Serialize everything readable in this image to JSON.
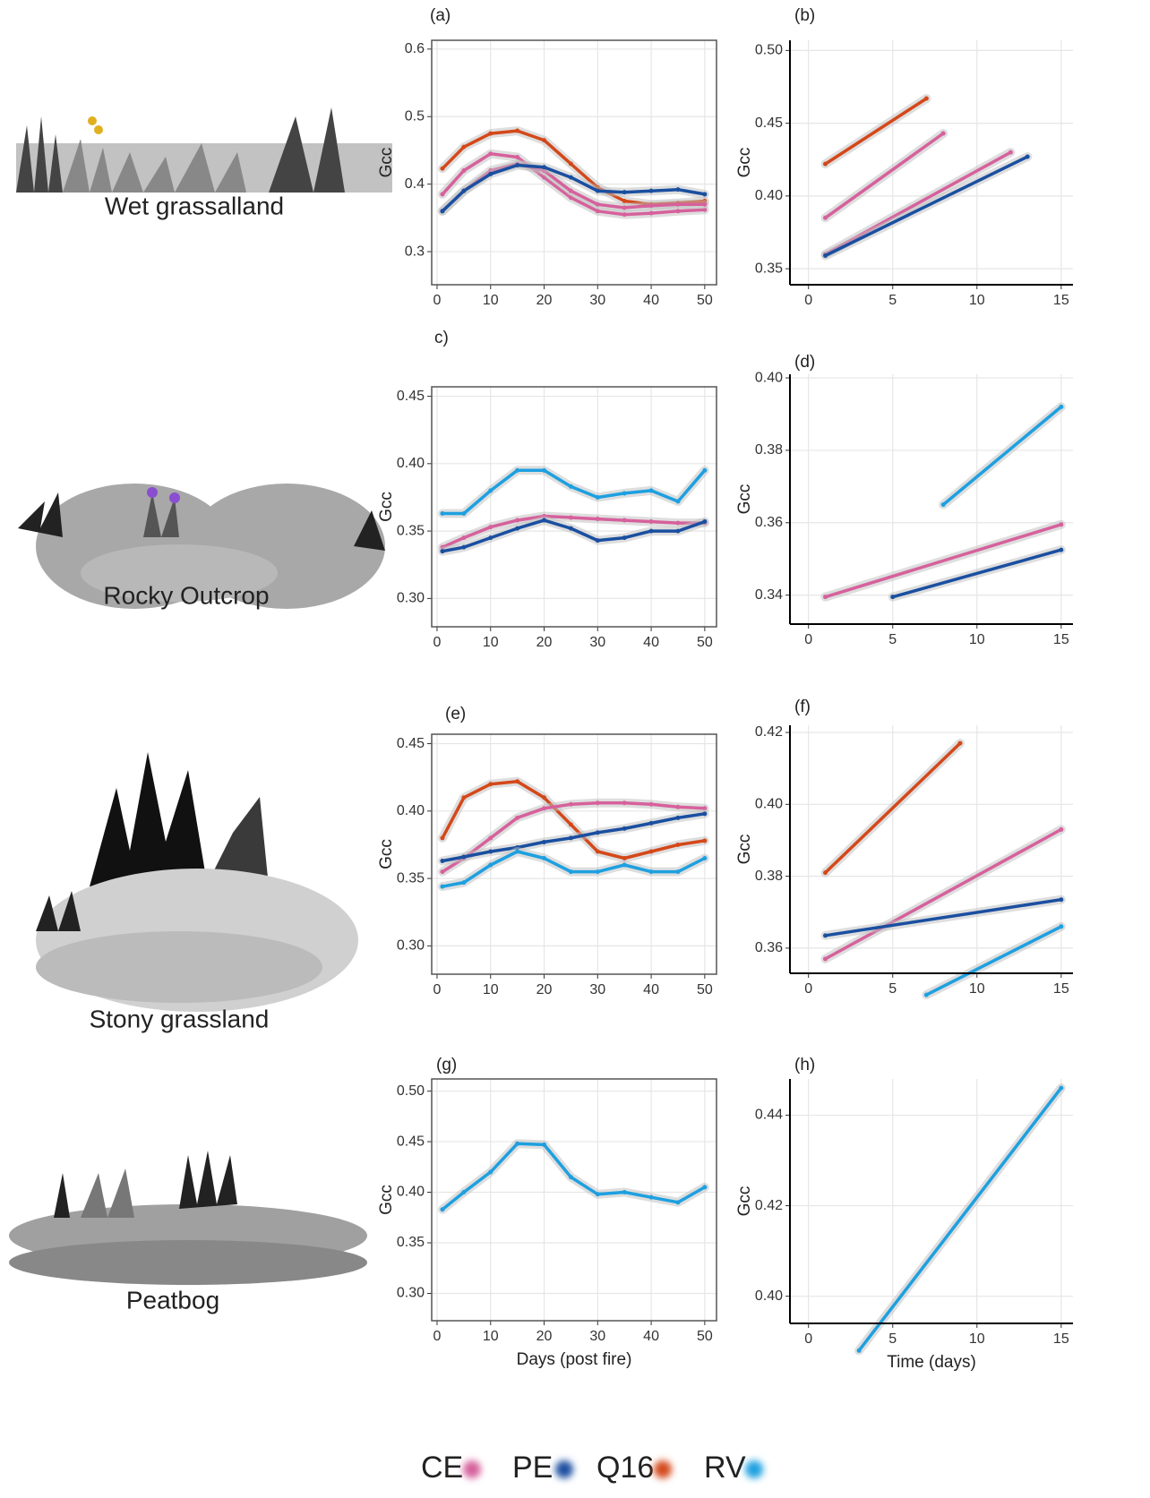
{
  "chart_data": [
    {
      "type": "line",
      "title": "(a)",
      "ylabel": "Gcc",
      "xlim": [
        -1,
        52.2
      ],
      "ylim": [
        0.251,
        0.613
      ],
      "xticks": [
        0,
        10,
        20,
        30,
        40,
        50
      ],
      "yticks": [
        0.3,
        0.4,
        0.5,
        0.6
      ],
      "grid": true,
      "x": [
        1,
        5,
        10,
        15,
        20,
        25,
        30,
        35,
        40,
        45,
        50
      ],
      "series": [
        {
          "name": "Q16",
          "color": "#d4481a",
          "values": [
            0.423,
            0.455,
            0.475,
            0.479,
            0.465,
            0.43,
            0.395,
            0.375,
            0.37,
            0.372,
            0.375
          ]
        },
        {
          "name": "CE",
          "color": "#d6619c",
          "values": [
            0.385,
            0.42,
            0.445,
            0.44,
            0.41,
            0.38,
            0.36,
            0.355,
            0.357,
            0.36,
            0.362
          ]
        },
        {
          "name": "CE",
          "color": "#d6619c",
          "values": [
            0.36,
            0.39,
            0.42,
            0.43,
            0.42,
            0.39,
            0.37,
            0.365,
            0.368,
            0.37,
            0.37
          ]
        },
        {
          "name": "PE",
          "color": "#1a4fa0",
          "values": [
            0.36,
            0.39,
            0.415,
            0.428,
            0.425,
            0.41,
            0.39,
            0.388,
            0.39,
            0.392,
            0.385
          ]
        }
      ]
    },
    {
      "type": "line",
      "title": "(b)",
      "ylabel": "Gcc",
      "xlim": [
        -1.1,
        15.7
      ],
      "ylim": [
        0.339,
        0.507
      ],
      "xticks": [
        0,
        5,
        10,
        15
      ],
      "yticks": [
        0.35,
        {
          "value": 0.4,
          "label": "0.40"
        },
        0.45,
        {
          "value": 0.5,
          "label": "0.50"
        }
      ],
      "grid": true,
      "series": [
        {
          "name": "Q16",
          "color": "#d4481a",
          "x": [
            1,
            7
          ],
          "values": [
            0.422,
            0.467
          ]
        },
        {
          "name": "CE",
          "color": "#d6619c",
          "x": [
            1,
            8
          ],
          "values": [
            0.385,
            0.443
          ]
        },
        {
          "name": "CE",
          "color": "#d6619c",
          "x": [
            1,
            12
          ],
          "values": [
            0.36,
            0.43
          ]
        },
        {
          "name": "PE",
          "color": "#1a4fa0",
          "x": [
            1,
            13
          ],
          "values": [
            0.359,
            0.427
          ]
        }
      ]
    },
    {
      "type": "line",
      "title": "c)",
      "ylabel": "Gcc",
      "xlim": [
        -1,
        52.2
      ],
      "ylim": [
        0.279,
        0.457
      ],
      "xticks": [
        0,
        10,
        20,
        30,
        40,
        50
      ],
      "yticks": [
        {
          "value": 0.3,
          "label": "0.30"
        },
        0.35,
        {
          "value": 0.4,
          "label": "0.40"
        },
        0.45
      ],
      "grid": true,
      "x": [
        1,
        5,
        10,
        15,
        20,
        25,
        30,
        35,
        40,
        45,
        50
      ],
      "series": [
        {
          "name": "RV",
          "color": "#1ea0e0",
          "values": [
            0.363,
            0.363,
            0.38,
            0.395,
            0.395,
            0.383,
            0.375,
            0.378,
            0.38,
            0.372,
            0.395
          ]
        },
        {
          "name": "CE",
          "color": "#d6619c",
          "values": [
            0.338,
            0.345,
            0.353,
            0.358,
            0.361,
            0.36,
            0.359,
            0.358,
            0.357,
            0.356,
            0.356
          ]
        },
        {
          "name": "PE",
          "color": "#1a4fa0",
          "values": [
            0.335,
            0.338,
            0.345,
            0.352,
            0.358,
            0.352,
            0.343,
            0.345,
            0.35,
            0.35,
            0.357
          ]
        }
      ]
    },
    {
      "type": "line",
      "title": "(d)",
      "ylabel": "Gcc",
      "xlim": [
        -1.1,
        15.7
      ],
      "ylim": [
        0.332,
        0.401
      ],
      "xticks": [
        0,
        5,
        10,
        15
      ],
      "yticks": [
        0.34,
        0.36,
        0.38,
        {
          "value": 0.4,
          "label": "0.40"
        }
      ],
      "grid": true,
      "series": [
        {
          "name": "RV",
          "color": "#1ea0e0",
          "x": [
            8,
            15
          ],
          "values": [
            0.365,
            0.392
          ]
        },
        {
          "name": "CE",
          "color": "#d6619c",
          "x": [
            1,
            15
          ],
          "values": [
            0.3395,
            0.3595
          ]
        },
        {
          "name": "PE",
          "color": "#1a4fa0",
          "x": [
            5,
            15
          ],
          "values": [
            0.3395,
            0.3525
          ]
        }
      ]
    },
    {
      "type": "line",
      "title": "(e)",
      "ylabel": "Gcc",
      "xlim": [
        -1,
        52.2
      ],
      "ylim": [
        0.279,
        0.457
      ],
      "xticks": [
        0,
        10,
        20,
        30,
        40,
        50
      ],
      "yticks": [
        {
          "value": 0.3,
          "label": "0.30"
        },
        0.35,
        {
          "value": 0.4,
          "label": "0.40"
        },
        0.45
      ],
      "grid": true,
      "x": [
        1,
        5,
        10,
        15,
        20,
        25,
        30,
        35,
        40,
        45,
        50
      ],
      "series": [
        {
          "name": "Q16",
          "color": "#d4481a",
          "values": [
            0.38,
            0.41,
            0.42,
            0.422,
            0.41,
            0.39,
            0.37,
            0.365,
            0.37,
            0.375,
            0.378
          ]
        },
        {
          "name": "CE",
          "color": "#d6619c",
          "values": [
            0.355,
            0.365,
            0.38,
            0.395,
            0.402,
            0.405,
            0.406,
            0.406,
            0.405,
            0.403,
            0.402
          ]
        },
        {
          "name": "PE",
          "color": "#1a4fa0",
          "values": [
            0.363,
            0.366,
            0.37,
            0.373,
            0.377,
            0.38,
            0.384,
            0.387,
            0.391,
            0.395,
            0.398
          ]
        },
        {
          "name": "RV",
          "color": "#1ea0e0",
          "values": [
            0.344,
            0.347,
            0.36,
            0.37,
            0.365,
            0.355,
            0.355,
            0.36,
            0.355,
            0.355,
            0.365
          ]
        }
      ]
    },
    {
      "type": "line",
      "title": "(f)",
      "ylabel": "Gcc",
      "xlim": [
        -1.1,
        15.7
      ],
      "ylim": [
        0.353,
        0.422
      ],
      "xticks": [
        0,
        5,
        10,
        15
      ],
      "yticks": [
        0.36,
        0.38,
        {
          "value": 0.4,
          "label": "0.40"
        },
        0.42
      ],
      "grid": true,
      "series": [
        {
          "name": "Q16",
          "color": "#d4481a",
          "x": [
            1,
            9
          ],
          "values": [
            0.381,
            0.417
          ]
        },
        {
          "name": "CE",
          "color": "#d6619c",
          "x": [
            1,
            15
          ],
          "values": [
            0.357,
            0.393
          ]
        },
        {
          "name": "PE",
          "color": "#1a4fa0",
          "x": [
            1,
            15
          ],
          "values": [
            0.3635,
            0.3735
          ]
        },
        {
          "name": "RV",
          "color": "#1ea0e0",
          "x": [
            7,
            15
          ],
          "values": [
            0.347,
            0.366
          ]
        }
      ]
    },
    {
      "type": "line",
      "title": "(g)",
      "ylabel": "Gcc",
      "xlabel": "Days (post fire)",
      "xlim": [
        -1,
        52.2
      ],
      "ylim": [
        0.273,
        0.512
      ],
      "xticks": [
        0,
        10,
        20,
        30,
        40,
        50
      ],
      "yticks": [
        {
          "value": 0.3,
          "label": "0.30"
        },
        0.35,
        {
          "value": 0.4,
          "label": "0.40"
        },
        0.45,
        {
          "value": 0.5,
          "label": "0.50"
        }
      ],
      "grid": true,
      "x": [
        1,
        5,
        10,
        15,
        20,
        25,
        30,
        35,
        40,
        45,
        50
      ],
      "series": [
        {
          "name": "RV",
          "color": "#1ea0e0",
          "values": [
            0.383,
            0.4,
            0.42,
            0.448,
            0.447,
            0.415,
            0.398,
            0.4,
            0.395,
            0.39,
            0.405
          ]
        }
      ]
    },
    {
      "type": "line",
      "title": "(h)",
      "ylabel": "Gcc",
      "xlabel": "Time (days)",
      "xlim": [
        -1.1,
        15.7
      ],
      "ylim": [
        0.394,
        0.448
      ],
      "xticks": [
        0,
        5,
        10,
        15
      ],
      "yticks": [
        {
          "value": 0.4,
          "label": "0.40"
        },
        0.42,
        0.44
      ],
      "grid": true,
      "series": [
        {
          "name": "RV",
          "color": "#1ea0e0",
          "x": [
            3,
            15
          ],
          "values": [
            0.388,
            0.446
          ]
        }
      ]
    }
  ],
  "habitats": [
    "Wet grassalland",
    "Rocky Outcrop",
    "Stony grassland",
    "Peatbog"
  ],
  "legend": [
    {
      "name": "CE",
      "color": "#d6619c"
    },
    {
      "name": "PE",
      "color": "#1a4fa0"
    },
    {
      "name": "Q16",
      "color": "#d4481a"
    },
    {
      "name": "RV",
      "color": "#1ea0e0"
    }
  ]
}
